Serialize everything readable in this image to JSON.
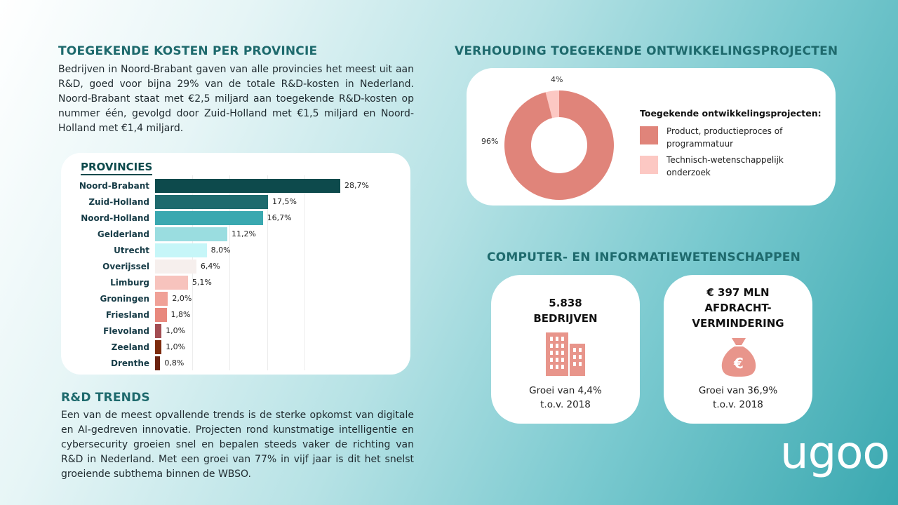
{
  "costs_section": {
    "title": "TOEGEKENDE KOSTEN PER PROVINCIE",
    "text": "Bedrijven in Noord-Brabant gaven van alle provincies het meest uit aan R&D, goed voor bijna 29% van de totale R&D-kosten in Nederland. Noord-Brabant staat met €2,5 miljard aan toegekende R&D-kosten op nummer één, gevolgd door Zuid-Holland met €1,5 miljard en Noord-Holland met €1,4 miljard."
  },
  "chart_data": [
    {
      "type": "bar",
      "orientation": "horizontal",
      "title": "PROVINCIES",
      "categories": [
        "Noord-Brabant",
        "Zuid-Holland",
        "Noord-Holland",
        "Gelderland",
        "Utrecht",
        "Overijssel",
        "Limburg",
        "Groningen",
        "Friesland",
        "Flevoland",
        "Zeeland",
        "Drenthe"
      ],
      "values": [
        28.7,
        17.5,
        16.7,
        11.2,
        8.0,
        6.4,
        5.1,
        2.0,
        1.8,
        1.0,
        1.0,
        0.8
      ],
      "value_labels": [
        "28,7%",
        "17,5%",
        "16,7%",
        "11,2%",
        "8,0%",
        "6,4%",
        "5,1%",
        "2,0%",
        "1,8%",
        "1,0%",
        "1,0%",
        "0,8%"
      ],
      "bar_colors": [
        "#0d4a4c",
        "#1e6a6d",
        "#3aa8b0",
        "#9adde0",
        "#c6f6f8",
        "#f6efed",
        "#f7c3bd",
        "#f0a197",
        "#e8887d",
        "#a34d52",
        "#7d2b0d",
        "#6b2210"
      ],
      "xlim": [
        0,
        30
      ],
      "grid": true
    },
    {
      "type": "pie",
      "title": "VERHOUDING TOEGEKENDE ONTWIKKELINGSPROJECTEN",
      "legend_title": "Toegekende ontwikkelingsprojecten:",
      "legend_position": "right",
      "series": [
        {
          "name": "Product, productieproces of programmatuur",
          "value": 96,
          "label": "96%",
          "color": "#e0847a"
        },
        {
          "name": "Technisch-wetenschappelijk onderzoek",
          "value": 4,
          "label": "4%",
          "color": "#fcc8c3"
        }
      ]
    }
  ],
  "computer_section": {
    "title": "COMPUTER- EN INFORMATIEWETENSCHAPPEN",
    "card1": {
      "line1": "5.838",
      "line2": "BEDRIJVEN",
      "icon": "office-building-icon",
      "growth1": "Groei van 4,4%",
      "growth2": "t.o.v. 2018"
    },
    "card2": {
      "line1": "€ 397 MLN",
      "line2": "AFDRACHT-",
      "line3": "VERMINDERING",
      "icon": "money-bag-euro-icon",
      "growth1": "Groei van 36,9%",
      "growth2": "t.o.v. 2018"
    }
  },
  "trends_section": {
    "title": "R&D TRENDS",
    "text": "Een van de meest opvallende trends is de sterke opkomst van digitale en AI-gedreven innovatie. Projecten rond kunstmatige intelligentie en cybersecurity groeien snel en bepalen steeds vaker de richting van R&D in Nederland. Met een groei van 77% in vijf jaar is dit het snelst groeiende subthema binnen de WBSO."
  },
  "logo": {
    "text": "ugoo"
  },
  "colors": {
    "heading": "#1e6a6d",
    "accent_salmon": "#e0847a",
    "accent_pink": "#fcc8c3"
  }
}
